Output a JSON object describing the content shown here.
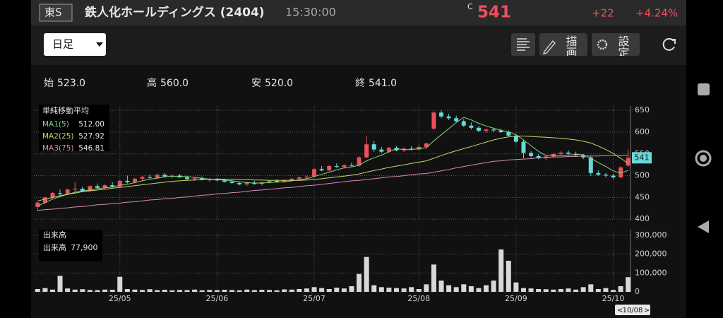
{
  "header": {
    "market": "東S",
    "name": "鉄人化ホールディングス (2404)",
    "time": "15:30:00",
    "price_flag": "C",
    "price": "541",
    "change": "+22",
    "change_pct": "+4.24%"
  },
  "toolbar": {
    "period": "日足",
    "draw": "描画",
    "settings": "設定"
  },
  "ohlc": [
    {
      "label": "始",
      "value": "523.0"
    },
    {
      "label": "高",
      "value": "560.0"
    },
    {
      "label": "安",
      "value": "520.0"
    },
    {
      "label": "終",
      "value": "541.0"
    }
  ],
  "chart_data": [
    {
      "type": "candlestick",
      "legend_title": "単純移動平均",
      "up_color": "#ef4f5b",
      "down_color": "#66d9d9",
      "grid": true,
      "cursor_date": "10/08",
      "categories": [
        null,
        null,
        null,
        null,
        null,
        null,
        null,
        null,
        null,
        null,
        null,
        "25/05",
        null,
        null,
        null,
        null,
        null,
        null,
        null,
        null,
        null,
        null,
        null,
        null,
        "25/06",
        null,
        null,
        null,
        null,
        null,
        null,
        null,
        null,
        null,
        null,
        null,
        null,
        "25/07",
        null,
        null,
        null,
        null,
        null,
        null,
        null,
        null,
        null,
        null,
        null,
        null,
        null,
        "25/08",
        null,
        null,
        null,
        null,
        null,
        null,
        null,
        null,
        null,
        null,
        null,
        null,
        "25/09",
        null,
        null,
        null,
        null,
        null,
        null,
        null,
        null,
        null,
        null,
        null,
        null,
        "25/10",
        null,
        null
      ],
      "candles": [
        [
          428,
          440,
          418,
          438
        ],
        [
          438,
          452,
          435,
          450
        ],
        [
          450,
          462,
          448,
          460
        ],
        [
          460,
          468,
          455,
          458
        ],
        [
          458,
          470,
          455,
          468
        ],
        [
          468,
          485,
          462,
          470
        ],
        [
          470,
          475,
          462,
          465
        ],
        [
          465,
          478,
          463,
          476
        ],
        [
          476,
          482,
          470,
          472
        ],
        [
          472,
          480,
          468,
          478
        ],
        [
          478,
          485,
          472,
          475
        ],
        [
          475,
          490,
          472,
          488
        ],
        [
          488,
          500,
          482,
          485
        ],
        [
          485,
          495,
          482,
          493
        ],
        [
          493,
          500,
          488,
          497
        ],
        [
          497,
          502,
          492,
          495
        ],
        [
          495,
          505,
          493,
          502
        ],
        [
          502,
          506,
          496,
          498
        ],
        [
          498,
          503,
          494,
          500
        ],
        [
          500,
          504,
          495,
          496
        ],
        [
          496,
          500,
          490,
          492
        ],
        [
          492,
          497,
          488,
          494
        ],
        [
          494,
          498,
          489,
          490
        ],
        [
          490,
          494,
          486,
          491
        ],
        [
          491,
          495,
          487,
          489
        ],
        [
          489,
          493,
          484,
          486
        ],
        [
          486,
          490,
          481,
          483
        ],
        [
          483,
          487,
          478,
          480
        ],
        [
          480,
          486,
          476,
          484
        ],
        [
          484,
          488,
          479,
          481
        ],
        [
          481,
          486,
          477,
          485
        ],
        [
          485,
          490,
          482,
          488
        ],
        [
          488,
          492,
          484,
          486
        ],
        [
          486,
          491,
          483,
          490
        ],
        [
          490,
          495,
          486,
          493
        ],
        [
          493,
          498,
          489,
          496
        ],
        [
          496,
          500,
          492,
          498
        ],
        [
          498,
          518,
          496,
          515
        ],
        [
          515,
          522,
          510,
          512
        ],
        [
          512,
          525,
          510,
          522
        ],
        [
          522,
          528,
          518,
          520
        ],
        [
          520,
          526,
          516,
          524
        ],
        [
          524,
          530,
          520,
          523
        ],
        [
          523,
          545,
          520,
          542
        ],
        [
          542,
          592,
          540,
          572
        ],
        [
          572,
          580,
          555,
          560
        ],
        [
          560,
          566,
          552,
          555
        ],
        [
          555,
          566,
          552,
          564
        ],
        [
          564,
          568,
          556,
          558
        ],
        [
          558,
          565,
          555,
          562
        ],
        [
          562,
          568,
          558,
          560
        ],
        [
          560,
          570,
          558,
          566
        ],
        [
          566,
          576,
          562,
          574
        ],
        [
          608,
          648,
          605,
          645
        ],
        [
          645,
          650,
          632,
          636
        ],
        [
          636,
          642,
          628,
          632
        ],
        [
          632,
          638,
          622,
          625
        ],
        [
          625,
          630,
          612,
          615
        ],
        [
          615,
          622,
          606,
          610
        ],
        [
          610,
          614,
          600,
          603
        ],
        [
          603,
          608,
          598,
          606
        ],
        [
          606,
          610,
          600,
          604
        ],
        [
          604,
          608,
          598,
          600
        ],
        [
          600,
          604,
          590,
          592
        ],
        [
          592,
          596,
          575,
          578
        ],
        [
          578,
          582,
          540,
          552
        ],
        [
          552,
          556,
          542,
          545
        ],
        [
          545,
          550,
          538,
          540
        ],
        [
          540,
          546,
          536,
          544
        ],
        [
          544,
          552,
          540,
          550
        ],
        [
          550,
          556,
          546,
          553
        ],
        [
          553,
          558,
          548,
          550
        ],
        [
          550,
          555,
          544,
          547
        ],
        [
          547,
          550,
          538,
          542
        ],
        [
          542,
          546,
          500,
          506
        ],
        [
          506,
          512,
          500,
          502
        ],
        [
          502,
          506,
          496,
          500
        ],
        [
          500,
          504,
          492,
          496
        ],
        [
          496,
          522,
          494,
          519
        ],
        [
          523,
          560,
          520,
          541
        ]
      ],
      "series": [
        {
          "name": "MA1(5)",
          "latest": "512.00",
          "color": "#7ed87e",
          "values": [
            430,
            438,
            446,
            452,
            457,
            462,
            465,
            467,
            470,
            472,
            474,
            478,
            480,
            484,
            488,
            492,
            494,
            497,
            499,
            498,
            498,
            496,
            494,
            492,
            491,
            490,
            488,
            486,
            484,
            483,
            483,
            484,
            485,
            486,
            488,
            491,
            493,
            498,
            503,
            508,
            513,
            518,
            520,
            524,
            534,
            541,
            547,
            555,
            562,
            560,
            560,
            562,
            564,
            580,
            594,
            608,
            622,
            634,
            628,
            620,
            614,
            609,
            604,
            601,
            594,
            582,
            569,
            556,
            546,
            546,
            546,
            547,
            549,
            548,
            540,
            530,
            521,
            511,
            506,
            512
          ]
        },
        {
          "name": "MA2(25)",
          "latest": "527.92",
          "color": "#c8d66a",
          "values": [
            442,
            446,
            450,
            454,
            457,
            460,
            463,
            465,
            467,
            469,
            471,
            473,
            475,
            477,
            479,
            481,
            483,
            485,
            487,
            488,
            489,
            490,
            491,
            492,
            492,
            492,
            492,
            491,
            491,
            490,
            490,
            489,
            489,
            489,
            489,
            489,
            490,
            491,
            493,
            495,
            497,
            499,
            501,
            504,
            508,
            512,
            515,
            519,
            522,
            525,
            528,
            531,
            534,
            540,
            546,
            552,
            557,
            562,
            567,
            572,
            577,
            582,
            586,
            589,
            591,
            591,
            590,
            589,
            588,
            587,
            586,
            584,
            582,
            579,
            575,
            568,
            560,
            551,
            540,
            527.92
          ]
        },
        {
          "name": "MA3(75)",
          "latest": "546.81",
          "color": "#d889b8",
          "values": [
            420,
            422,
            423,
            425,
            426,
            428,
            429,
            431,
            433,
            434,
            436,
            437,
            439,
            440,
            442,
            444,
            445,
            447,
            448,
            450,
            451,
            453,
            455,
            456,
            458,
            459,
            461,
            462,
            464,
            466,
            467,
            469,
            470,
            472,
            473,
            475,
            477,
            478,
            480,
            482,
            484,
            486,
            488,
            489,
            491,
            493,
            495,
            497,
            498,
            500,
            502,
            504,
            505,
            508,
            511,
            514,
            518,
            521,
            524,
            527,
            530,
            533,
            534,
            536,
            537,
            538,
            539,
            541,
            542,
            543,
            543,
            544,
            544,
            545,
            545,
            545,
            546,
            546,
            546,
            546.81
          ]
        }
      ],
      "ylim": [
        397,
        660
      ],
      "yticks": [
        400,
        450,
        500,
        550,
        600,
        650
      ]
    },
    {
      "type": "bar",
      "title": "出来高",
      "color": "#d8d8d8",
      "grid": true,
      "series": [
        {
          "name": "出来高",
          "value_label": "77,900",
          "values": [
            15000,
            20000,
            12000,
            85000,
            18000,
            12000,
            14000,
            10000,
            9000,
            12000,
            11000,
            80000,
            15000,
            12000,
            10000,
            14000,
            9000,
            11000,
            8000,
            10000,
            9000,
            12000,
            8000,
            10000,
            9000,
            11000,
            10000,
            8000,
            12000,
            9000,
            11000,
            10000,
            8000,
            13000,
            12000,
            15000,
            18000,
            25000,
            20000,
            15000,
            22000,
            18000,
            30000,
            95000,
            185000,
            35000,
            25000,
            22000,
            20000,
            18000,
            25000,
            15000,
            40000,
            145000,
            60000,
            35000,
            25000,
            40000,
            30000,
            20000,
            35000,
            60000,
            225000,
            165000,
            50000,
            20000,
            18000,
            15000,
            14000,
            12000,
            15000,
            18000,
            12000,
            25000,
            40000,
            15000,
            20000,
            10000,
            30000,
            77900
          ]
        }
      ],
      "ylim": [
        0,
        330000
      ],
      "yticks": [
        0,
        {
          "value": 100000,
          "label": "100,000"
        },
        {
          "value": 200000,
          "label": "200,000"
        },
        {
          "value": 300000,
          "label": "300,000"
        }
      ]
    }
  ]
}
